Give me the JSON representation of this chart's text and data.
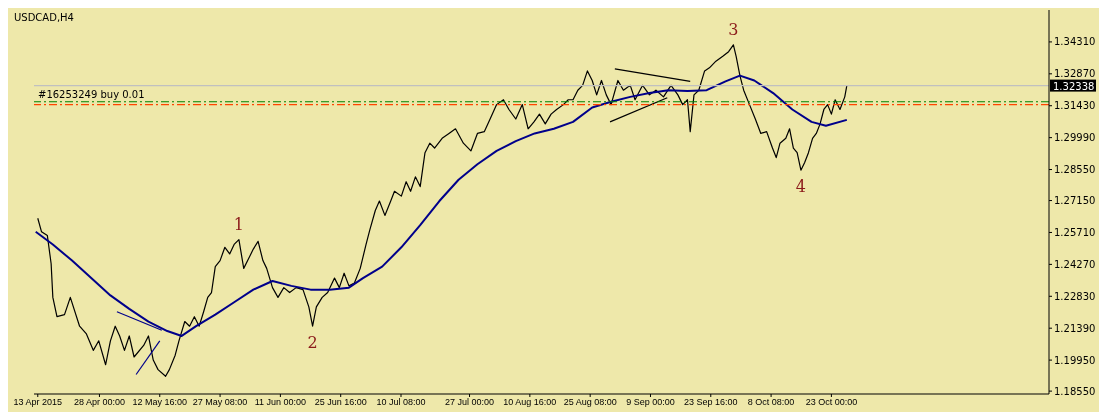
{
  "chart_data": {
    "type": "line",
    "title": "USDCAD,H4",
    "marker": "none",
    "xlim": [
      "2015-04-12T02:00",
      "2015-12-14T22:00"
    ],
    "xticks": [
      {
        "value": "2015-04-13T00:00",
        "label": "13 Apr 2015"
      },
      {
        "value": "2015-04-28T00:00",
        "label": "28 Apr 00:00"
      },
      {
        "value": "2015-05-12T16:00",
        "label": "12 May 16:00"
      },
      {
        "value": "2015-05-27T08:00",
        "label": "27 May 08:00"
      },
      {
        "value": "2015-06-11T00:00",
        "label": "11 Jun 00:00"
      },
      {
        "value": "2015-06-25T16:00",
        "label": "25 Jun 16:00"
      },
      {
        "value": "2015-07-10T08:00",
        "label": "10 Jul 08:00"
      },
      {
        "value": "2015-07-27T00:00",
        "label": "27 Jul 00:00"
      },
      {
        "value": "2015-08-10T16:00",
        "label": "10 Aug 16:00"
      },
      {
        "value": "2015-08-25T08:00",
        "label": "25 Aug 08:00"
      },
      {
        "value": "2015-09-09T00:00",
        "label": "9 Sep 00:00"
      },
      {
        "value": "2015-09-23T16:00",
        "label": "23 Sep 16:00"
      },
      {
        "value": "2015-10-08T08:00",
        "label": "8 Oct 08:00"
      },
      {
        "value": "2015-10-23T00:00",
        "label": "23 Oct 00:00"
      }
    ],
    "ylim": [
      1.1842,
      1.3575
    ],
    "yticks": [
      {
        "value": 1.1855,
        "label": "1.18550"
      },
      {
        "value": 1.1995,
        "label": "1.19950"
      },
      {
        "value": 1.2139,
        "label": "1.21390"
      },
      {
        "value": 1.2283,
        "label": "1.22830"
      },
      {
        "value": 1.2427,
        "label": "1.24270"
      },
      {
        "value": 1.2571,
        "label": "1.25710"
      },
      {
        "value": 1.2715,
        "label": "1.27150"
      },
      {
        "value": 1.2855,
        "label": "1.28550"
      },
      {
        "value": 1.2999,
        "label": "1.29990"
      },
      {
        "value": 1.3143,
        "label": "1.31430"
      },
      {
        "value": 1.3287,
        "label": "1.32870"
      },
      {
        "value": 1.3431,
        "label": "1.34310"
      }
    ],
    "series": [
      {
        "color": "#000000",
        "x": [
          "2015-04-13T00:00",
          "2015-04-13T22:00",
          "2015-04-15T08:00",
          "2015-04-16T06:00",
          "2015-04-16T16:00",
          "2015-04-17T16:00",
          "2015-04-19T12:00",
          "2015-04-20T22:00",
          "2015-04-23T04:00",
          "2015-04-24T20:00",
          "2015-04-26T12:00",
          "2015-04-27T20:00",
          "2015-04-29T12:00",
          "2015-04-30T16:00",
          "2015-05-01T20:00",
          "2015-05-02T22:00",
          "2015-05-04T02:00",
          "2015-05-05T06:00",
          "2015-05-06T10:00",
          "2015-05-08T18:00",
          "2015-05-09T22:00",
          "2015-05-11T02:00",
          "2015-05-12T06:00",
          "2015-05-14T02:00",
          "2015-05-15T00:00",
          "2015-05-16T10:00",
          "2015-05-17T08:00",
          "2015-05-18T18:00",
          "2015-05-19T22:00",
          "2015-05-21T02:00",
          "2015-05-22T06:00",
          "2015-05-23T08:00",
          "2015-05-24T08:00",
          "2015-05-25T06:00",
          "2015-05-26T04:00",
          "2015-05-27T08:00",
          "2015-05-28T12:00",
          "2015-05-29T16:00",
          "2015-05-30T18:00",
          "2015-05-31T22:00",
          "2015-06-02T02:00",
          "2015-06-03T06:00",
          "2015-06-04T10:00",
          "2015-06-05T14:00",
          "2015-06-06T18:00",
          "2015-06-07T16:00",
          "2015-06-09T02:00",
          "2015-06-10T10:00",
          "2015-06-11T20:00",
          "2015-06-13T06:00",
          "2015-06-14T20:00",
          "2015-06-16T12:00",
          "2015-06-17T22:00",
          "2015-06-18T20:00",
          "2015-06-19T18:00",
          "2015-06-21T04:00",
          "2015-06-22T12:00",
          "2015-06-24T04:00",
          "2015-06-25T08:00",
          "2015-06-26T12:00",
          "2015-06-27T16:00",
          "2015-06-29T00:00",
          "2015-06-30T10:00",
          "2015-07-01T20:00",
          "2015-07-02T18:00",
          "2015-07-04T02:00",
          "2015-07-05T02:00",
          "2015-07-06T10:00",
          "2015-07-07T20:00",
          "2015-07-08T18:00",
          "2015-07-10T10:00",
          "2015-07-11T14:00",
          "2015-07-12T16:00",
          "2015-07-13T20:00",
          "2015-07-15T00:00",
          "2015-07-16T04:00",
          "2015-07-17T08:00",
          "2015-07-18T12:00",
          "2015-07-20T08:00",
          "2015-07-22T00:00",
          "2015-07-23T14:00",
          "2015-07-25T12:00",
          "2015-07-27T08:00",
          "2015-07-28T22:00",
          "2015-07-30T14:00",
          "2015-08-01T00:00",
          "2015-08-02T14:00",
          "2015-08-04T06:00",
          "2015-08-05T14:00",
          "2015-08-07T06:00",
          "2015-08-08T20:00",
          "2015-08-10T06:00",
          "2015-08-11T16:00",
          "2015-08-13T00:00",
          "2015-08-14T10:00",
          "2015-08-15T20:00",
          "2015-08-17T04:00",
          "2015-08-18T20:00",
          "2015-08-20T00:00",
          "2015-08-21T04:00",
          "2015-08-22T08:00",
          "2015-08-23T12:00",
          "2015-08-24T16:00",
          "2015-08-25T20:00",
          "2015-08-26T22:00",
          "2015-08-28T02:00",
          "2015-08-29T06:00",
          "2015-08-30T10:00",
          "2015-09-01T02:00",
          "2015-09-02T10:00",
          "2015-09-04T02:00",
          "2015-09-05T06:00",
          "2015-09-07T02:00",
          "2015-09-08T18:00",
          "2015-09-10T08:00",
          "2015-09-12T04:00",
          "2015-09-14T00:00",
          "2015-09-15T16:00",
          "2015-09-16T20:00",
          "2015-09-18T00:00",
          "2015-09-18T16:00",
          "2015-09-19T14:00",
          "2015-09-20T18:00",
          "2015-09-22T04:00",
          "2015-09-23T08:00",
          "2015-09-24T22:00",
          "2015-09-26T14:00",
          "2015-09-28T00:00",
          "2015-09-29T04:00",
          "2015-09-29T20:00",
          "2015-09-30T18:00",
          "2015-10-01T16:00",
          "2015-10-03T02:00",
          "2015-10-04T12:00",
          "2015-10-05T20:00",
          "2015-10-07T06:00",
          "2015-10-08T16:00",
          "2015-10-09T14:00",
          "2015-10-10T12:00",
          "2015-10-11T22:00",
          "2015-10-12T20:00",
          "2015-10-13T18:00",
          "2015-10-14T16:00",
          "2015-10-15T14:00",
          "2015-10-16T12:00",
          "2015-10-17T10:00",
          "2015-10-18T10:00",
          "2015-10-19T08:00",
          "2015-10-20T06:00",
          "2015-10-21T04:00",
          "2015-10-22T02:00",
          "2015-10-23T00:00",
          "2015-10-23T22:00",
          "2015-10-25T02:00",
          "2015-10-26T06:00",
          "2015-10-26T18:00"
        ],
        "values": [
          1.2635,
          1.2574,
          1.2557,
          1.243,
          1.2278,
          1.2191,
          1.22,
          1.2278,
          1.2148,
          1.2113,
          1.2039,
          1.2082,
          1.1974,
          1.2082,
          1.2148,
          1.2104,
          1.2039,
          1.2104,
          1.2009,
          1.2061,
          1.2104,
          1.1995,
          1.1952,
          1.1922,
          1.1952,
          1.2017,
          1.2082,
          1.2169,
          1.2148,
          1.2191,
          1.2148,
          1.2213,
          1.2278,
          1.23,
          1.2417,
          1.2444,
          1.2504,
          1.2474,
          1.2517,
          1.2539,
          1.2409,
          1.2452,
          1.2496,
          1.2531,
          1.2444,
          1.2409,
          1.2322,
          1.2278,
          1.2322,
          1.23,
          1.2322,
          1.2313,
          1.2235,
          1.2148,
          1.2235,
          1.2278,
          1.23,
          1.2365,
          1.2322,
          1.2387,
          1.233,
          1.2343,
          1.2409,
          1.2517,
          1.2583,
          1.267,
          1.2713,
          1.2648,
          1.2713,
          1.2757,
          1.2735,
          1.28,
          1.2757,
          1.2822,
          1.2778,
          1.2931,
          1.2974,
          1.2952,
          1.2996,
          1.3018,
          1.3039,
          1.2974,
          1.2939,
          1.3018,
          1.3026,
          1.3083,
          1.3148,
          1.317,
          1.3126,
          1.3083,
          1.3148,
          1.3039,
          1.307,
          1.3105,
          1.3061,
          1.3105,
          1.3126,
          1.3148,
          1.317,
          1.317,
          1.3213,
          1.3235,
          1.33,
          1.3257,
          1.3192,
          1.3257,
          1.3192,
          1.3148,
          1.3257,
          1.3213,
          1.3235,
          1.317,
          1.3235,
          1.3192,
          1.3213,
          1.3183,
          1.3235,
          1.3192,
          1.3148,
          1.317,
          1.3026,
          1.3192,
          1.3213,
          1.33,
          1.3314,
          1.3344,
          1.3366,
          1.3387,
          1.3418,
          1.3366,
          1.3279,
          1.3213,
          1.3148,
          1.3083,
          1.3018,
          1.3026,
          1.2952,
          1.2909,
          1.2974,
          1.2996,
          1.3039,
          1.2952,
          1.2931,
          1.2852,
          1.2887,
          1.2931,
          1.2996,
          1.3018,
          1.3061,
          1.3126,
          1.3148,
          1.3105,
          1.317,
          1.3126,
          1.3183,
          1.3234
        ]
      },
      {
        "color": "#00008b",
        "x": [
          "2015-04-12T12:00",
          "2015-04-16T16:00",
          "2015-04-21T08:00",
          "2015-04-26T00:00",
          "2015-04-30T16:00",
          "2015-05-05T06:00",
          "2015-05-09T22:00",
          "2015-05-14T12:00",
          "2015-05-18T00:00",
          "2015-05-21T12:00",
          "2015-05-26T04:00",
          "2015-05-30T18:00",
          "2015-06-04T10:00",
          "2015-06-09T02:00",
          "2015-06-13T16:00",
          "2015-06-18T08:00",
          "2015-06-23T00:00",
          "2015-06-27T16:00",
          "2015-07-01T02:00",
          "2015-07-05T18:00",
          "2015-07-10T10:00",
          "2015-07-15T00:00",
          "2015-07-19T16:00",
          "2015-07-24T08:00",
          "2015-07-28T22:00",
          "2015-08-02T14:00",
          "2015-08-07T06:00",
          "2015-08-11T20:00",
          "2015-08-16T12:00",
          "2015-08-21T04:00",
          "2015-08-25T20:00",
          "2015-08-30T10:00",
          "2015-09-04T02:00",
          "2015-09-08T18:00",
          "2015-09-13T08:00",
          "2015-09-18T00:00",
          "2015-09-22T16:00",
          "2015-09-27T06:00",
          "2015-09-30T18:00",
          "2015-10-04T06:00",
          "2015-10-08T20:00",
          "2015-10-13T12:00",
          "2015-10-18T04:00",
          "2015-10-21T16:00",
          "2015-10-26T18:00"
        ],
        "values": [
          1.2574,
          1.2517,
          1.2444,
          1.2365,
          1.2287,
          1.2226,
          1.2169,
          1.2126,
          1.2104,
          1.2148,
          1.22,
          1.2256,
          1.2313,
          1.2352,
          1.233,
          1.2313,
          1.2313,
          1.2322,
          1.2365,
          1.2417,
          1.2504,
          1.2604,
          1.2713,
          1.2809,
          1.2879,
          1.2939,
          1.2983,
          1.3018,
          1.3039,
          1.307,
          1.3135,
          1.3161,
          1.3183,
          1.32,
          1.3213,
          1.3209,
          1.3213,
          1.3253,
          1.3279,
          1.3257,
          1.32,
          1.3126,
          1.307,
          1.3053,
          1.3079
        ]
      },
      {
        "color": "#00008b",
        "x": [
          "2015-05-02T06:00",
          "2015-05-13T04:00"
        ],
        "values": [
          1.2213,
          1.213
        ]
      },
      {
        "color": "#00008b",
        "x": [
          "2015-05-06T22:00",
          "2015-05-12T16:00"
        ],
        "values": [
          1.193,
          1.2082
        ]
      },
      {
        "color": "#000000",
        "x": [
          "2015-08-31T08:00",
          "2015-09-18T16:00"
        ],
        "values": [
          1.3309,
          1.3253
        ]
      },
      {
        "color": "#000000",
        "x": [
          "2015-08-30T04:00",
          "2015-09-13T02:00"
        ],
        "values": [
          1.307,
          1.3179
        ]
      }
    ],
    "ref_lines": [
      {
        "axis": "y",
        "value": 1.32338,
        "label": "1.32338",
        "color": "#c0c0c0",
        "line_style": "solid"
      },
      {
        "axis": "y",
        "value": 1.3161,
        "label": "#16253249 buy 0.01",
        "color": "#008000",
        "line_style": "dashdot"
      },
      {
        "axis": "y",
        "value": 1.3148,
        "color": "#ff4500",
        "line_style": "dashdot"
      }
    ],
    "annotations": [
      {
        "text": "1",
        "x": "2015-05-31T22:00",
        "y": 1.2539
      },
      {
        "text": "2",
        "x": "2015-06-18T20:00",
        "y": 1.2148
      },
      {
        "text": "3",
        "x": "2015-09-29T04:00",
        "y": 1.3418
      },
      {
        "text": "4",
        "x": "2015-10-15T14:00",
        "y": 1.2852
      }
    ]
  }
}
